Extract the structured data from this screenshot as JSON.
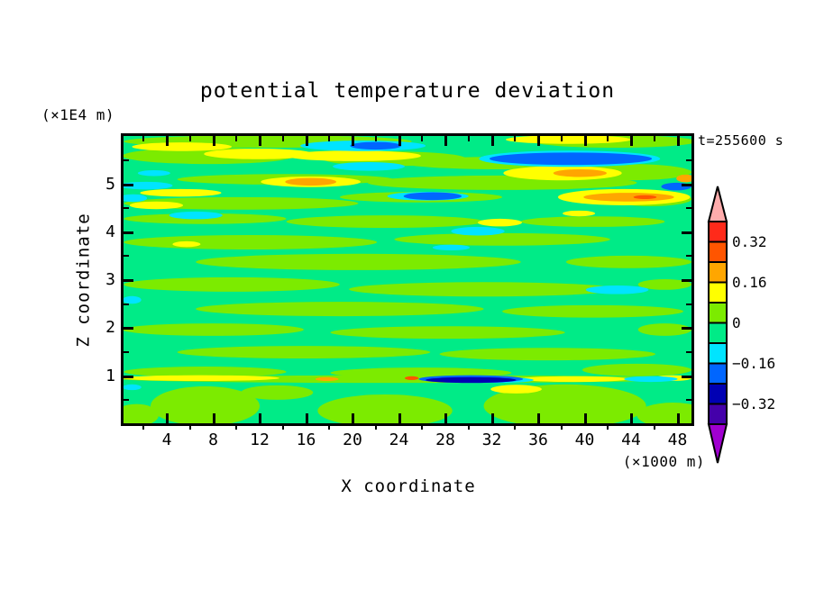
{
  "title": "potential temperature deviation",
  "time_label": "t=255600 s",
  "axes": {
    "x": {
      "label": "X coordinate",
      "unit": "(×1000 m)",
      "tick_labels": [
        4,
        8,
        12,
        16,
        20,
        24,
        28,
        32,
        36,
        40,
        44,
        48
      ],
      "minor_ticks": [
        2,
        6,
        10,
        14,
        18,
        22,
        26,
        30,
        34,
        38,
        42,
        46
      ],
      "range": [
        0.3,
        49.2
      ]
    },
    "y": {
      "label": "Z coordinate",
      "unit": "(×1E4 m)",
      "tick_labels": [
        1,
        2,
        3,
        4,
        5
      ],
      "minor_ticks": [
        0.5,
        1.5,
        2.5,
        3.5,
        4.5,
        5.5
      ],
      "range": [
        0,
        6.0
      ]
    }
  },
  "colorbar": {
    "boundary_values": [
      0.4,
      0.32,
      0.24,
      0.16,
      0.08,
      0,
      -0.08,
      -0.16,
      -0.24,
      -0.32,
      -0.4
    ],
    "segment_colors": [
      "#FF2A1A",
      "#FF5500",
      "#FFA600",
      "#FFFF00",
      "#7CEB00",
      "#00EB87",
      "#00E4FF",
      "#0066FF",
      "#0000B3",
      "#4400AA"
    ],
    "over_color": "#FFACAC",
    "under_color": "#A000D0",
    "labels": [
      {
        "text": "0.32",
        "boundary_index": 1
      },
      {
        "text": "0.16",
        "boundary_index": 3
      },
      {
        "text": "0",
        "boundary_index": 5
      },
      {
        "text": "−0.16",
        "boundary_index": 7
      },
      {
        "text": "−0.32",
        "boundary_index": 9
      }
    ]
  },
  "chart_data": {
    "type": "heatmap",
    "subtype": "filled-contour",
    "title": "potential temperature deviation",
    "xlabel": "X coordinate (×1000 m)",
    "ylabel": "Z coordinate (×1E4 m)",
    "time": "t=255600 s",
    "xlim": [
      0.3,
      49.2
    ],
    "ylim": [
      0,
      6.0
    ],
    "contour_interval": 0.08,
    "level_bands": {
      "red": [
        0.32,
        0.4
      ],
      "orangered": [
        0.24,
        0.32
      ],
      "orange": [
        0.16,
        0.24
      ],
      "yellow": [
        0.08,
        0.16
      ],
      "chartreuse": [
        0,
        0.08
      ],
      "springgreen": [
        -0.08,
        0
      ],
      "cyan": [
        -0.16,
        -0.08
      ],
      "blue": [
        -0.24,
        -0.16
      ],
      "navy": [
        -0.32,
        -0.24
      ],
      "indigo": [
        -0.4,
        -0.32
      ]
    },
    "palette": {
      "chartreuse": "#7CEB00",
      "springgreen": "#00EB87",
      "yellow": "#FFFF00",
      "orange": "#FFA600",
      "orangered": "#FF5500",
      "red": "#FF2A1A",
      "cyan": "#00E4FF",
      "blue": "#0066FF",
      "navy": "#0000B3",
      "indigo": "#4400AA"
    },
    "background_band": "springgreen",
    "features_note": "horizontal streak anomalies as [band, x_center, z_center, x_halfwidth, z_halfheight] in axis units",
    "features": [
      [
        "chartreuse",
        12.7,
        5.89,
        12.4,
        0.13
      ],
      [
        "chartreuse",
        42.6,
        5.89,
        7.0,
        0.13
      ],
      [
        "chartreuse",
        7.6,
        5.59,
        7.4,
        0.17
      ],
      [
        "chartreuse",
        23.6,
        5.53,
        6.2,
        0.15
      ],
      [
        "chartreuse",
        32.9,
        5.44,
        8.5,
        0.13
      ],
      [
        "chartreuse",
        14.2,
        5.1,
        9.3,
        0.11
      ],
      [
        "chartreuse",
        32.9,
        5.03,
        11.6,
        0.15
      ],
      [
        "chartreuse",
        43.8,
        5.25,
        5.4,
        0.17
      ],
      [
        "chartreuse",
        10.4,
        4.6,
        10.1,
        0.13
      ],
      [
        "chartreuse",
        25.9,
        4.73,
        7.0,
        0.11
      ],
      [
        "chartreuse",
        45.7,
        4.69,
        3.5,
        0.15
      ],
      [
        "chartreuse",
        7.3,
        4.28,
        7.0,
        0.11
      ],
      [
        "chartreuse",
        22.8,
        4.22,
        8.5,
        0.13
      ],
      [
        "chartreuse",
        40.7,
        4.22,
        6.2,
        0.11
      ],
      [
        "chartreuse",
        11.2,
        3.79,
        10.9,
        0.15
      ],
      [
        "chartreuse",
        32.9,
        3.85,
        9.3,
        0.13
      ],
      [
        "chartreuse",
        20.5,
        3.38,
        14.0,
        0.17
      ],
      [
        "chartreuse",
        43.8,
        3.38,
        5.4,
        0.13
      ],
      [
        "chartreuse",
        9.6,
        2.91,
        9.3,
        0.15
      ],
      [
        "chartreuse",
        31.3,
        2.81,
        11.6,
        0.15
      ],
      [
        "chartreuse",
        46.9,
        2.91,
        2.3,
        0.11
      ],
      [
        "chartreuse",
        18.9,
        2.4,
        12.4,
        0.15
      ],
      [
        "chartreuse",
        40.7,
        2.35,
        7.8,
        0.13
      ],
      [
        "chartreuse",
        8.0,
        1.97,
        7.8,
        0.13
      ],
      [
        "chartreuse",
        28.2,
        1.91,
        10.1,
        0.13
      ],
      [
        "chartreuse",
        46.9,
        1.97,
        2.3,
        0.13
      ],
      [
        "chartreuse",
        15.8,
        1.5,
        10.9,
        0.13
      ],
      [
        "chartreuse",
        36.8,
        1.46,
        9.3,
        0.13
      ],
      [
        "chartreuse",
        7.3,
        1.09,
        7.0,
        0.11
      ],
      [
        "chartreuse",
        25.9,
        1.07,
        7.8,
        0.11
      ],
      [
        "chartreuse",
        44.5,
        1.13,
        4.7,
        0.13
      ],
      [
        "chartreuse",
        24.7,
        0.94,
        24.5,
        0.08
      ],
      [
        "chartreuse",
        7.3,
        0.38,
        4.7,
        0.41
      ],
      [
        "chartreuse",
        22.8,
        0.28,
        5.8,
        0.34
      ],
      [
        "chartreuse",
        38.3,
        0.38,
        7.0,
        0.45
      ],
      [
        "chartreuse",
        47.6,
        0.19,
        3.1,
        0.26
      ],
      [
        "chartreuse",
        13.5,
        0.66,
        3.1,
        0.15
      ],
      [
        "chartreuse",
        1.4,
        0.19,
        1.9,
        0.23
      ],
      [
        "yellow",
        5.3,
        5.78,
        4.3,
        0.09
      ],
      [
        "yellow",
        11.9,
        5.63,
        4.7,
        0.11
      ],
      [
        "yellow",
        20.1,
        5.59,
        5.8,
        0.11
      ],
      [
        "yellow",
        38.6,
        5.93,
        5.4,
        0.09
      ],
      [
        "yellow",
        38.1,
        5.23,
        5.1,
        0.15
      ],
      [
        "yellow",
        5.2,
        4.82,
        3.5,
        0.08
      ],
      [
        "yellow",
        16.4,
        5.05,
        4.3,
        0.11
      ],
      [
        "yellow",
        3.1,
        4.56,
        2.3,
        0.08
      ],
      [
        "yellow",
        43.4,
        4.73,
        5.7,
        0.17
      ],
      [
        "yellow",
        32.7,
        4.2,
        1.9,
        0.08
      ],
      [
        "yellow",
        39.5,
        4.39,
        1.4,
        0.06
      ],
      [
        "yellow",
        5.7,
        3.75,
        1.2,
        0.06
      ],
      [
        "yellow",
        6.9,
        0.96,
        6.8,
        0.06
      ],
      [
        "yellow",
        39.1,
        0.94,
        4.7,
        0.06
      ],
      [
        "yellow",
        47.6,
        0.96,
        1.6,
        0.06
      ],
      [
        "yellow",
        34.1,
        0.73,
        2.2,
        0.09
      ],
      [
        "orange",
        16.4,
        5.05,
        2.2,
        0.08
      ],
      [
        "orange",
        39.6,
        5.23,
        2.3,
        0.08
      ],
      [
        "orange",
        43.8,
        4.73,
        3.9,
        0.09
      ],
      [
        "orange",
        17.8,
        0.94,
        1.0,
        0.04
      ],
      [
        "orange",
        48.7,
        5.12,
        0.8,
        0.08
      ],
      [
        "orangered",
        25.1,
        0.96,
        0.6,
        0.04
      ],
      [
        "orangered",
        45.2,
        4.73,
        1.0,
        0.04
      ],
      [
        "cyan",
        20.9,
        5.8,
        5.4,
        0.11
      ],
      [
        "cyan",
        38.7,
        5.53,
        7.8,
        0.17
      ],
      [
        "cyan",
        2.2,
        4.97,
        2.3,
        0.08
      ],
      [
        "cyan",
        1.1,
        4.71,
        1.2,
        0.08
      ],
      [
        "cyan",
        6.5,
        4.35,
        2.3,
        0.08
      ],
      [
        "cyan",
        26.5,
        4.75,
        3.5,
        0.09
      ],
      [
        "cyan",
        30.8,
        4.02,
        2.3,
        0.09
      ],
      [
        "cyan",
        28.5,
        3.68,
        1.6,
        0.06
      ],
      [
        "cyan",
        42.8,
        2.8,
        2.7,
        0.09
      ],
      [
        "cyan",
        1.0,
        2.59,
        0.8,
        0.08
      ],
      [
        "cyan",
        32.5,
        0.92,
        3.1,
        0.06
      ],
      [
        "cyan",
        45.7,
        0.94,
        2.3,
        0.06
      ],
      [
        "cyan",
        21.4,
        5.37,
        3.1,
        0.09
      ],
      [
        "cyan",
        2.9,
        5.23,
        1.4,
        0.06
      ],
      [
        "cyan",
        1.0,
        0.77,
        0.8,
        0.06
      ],
      [
        "blue",
        22.0,
        5.8,
        2.2,
        0.08
      ],
      [
        "blue",
        38.8,
        5.53,
        7.0,
        0.13
      ],
      [
        "blue",
        26.9,
        4.75,
        2.5,
        0.08
      ],
      [
        "blue",
        47.9,
        4.95,
        1.3,
        0.08
      ],
      [
        "blue",
        30.2,
        0.94,
        4.5,
        0.08
      ],
      [
        "navy",
        30.2,
        0.92,
        3.9,
        0.06
      ]
    ]
  }
}
